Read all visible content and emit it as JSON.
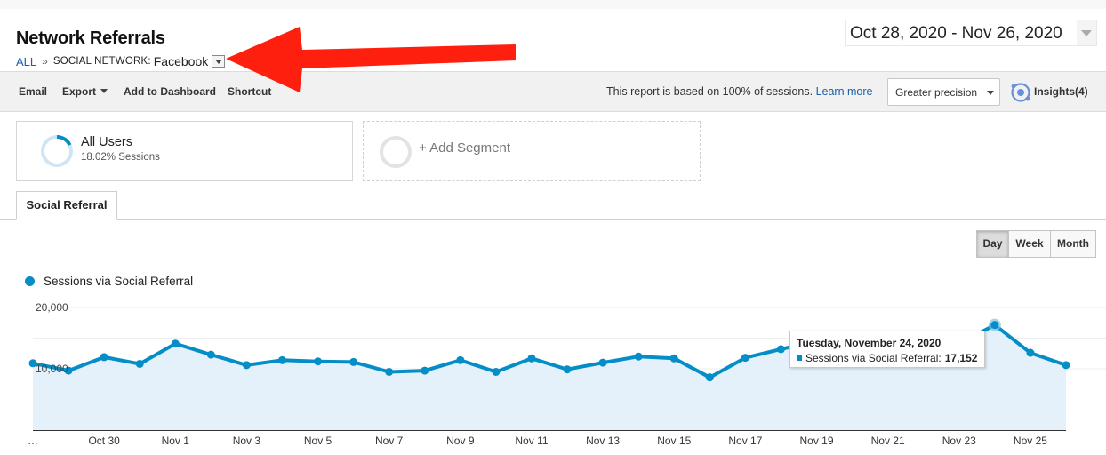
{
  "report": {
    "title": "Network Referrals",
    "breadcrumb": {
      "root": "ALL",
      "separator": "»",
      "dimension": "SOCIAL NETWORK:",
      "value": "Facebook"
    }
  },
  "date_range": "Oct 28, 2020 - Nov 26, 2020",
  "toolbar": {
    "email": "Email",
    "export": "Export",
    "add_to_dashboard": "Add to Dashboard",
    "shortcut": "Shortcut",
    "sampling_note": "This report is based on 100% of sessions.",
    "learn_more": "Learn more",
    "precision": "Greater precision",
    "insights": "Insights(4)"
  },
  "segments": {
    "all_users": {
      "title": "All Users",
      "subtitle": "18.02% Sessions",
      "share": 0.1802
    },
    "add_segment": "+ Add Segment"
  },
  "tab": "Social Referral",
  "period_buttons": [
    {
      "label": "Day",
      "active": true
    },
    {
      "label": "Week",
      "active": false
    },
    {
      "label": "Month",
      "active": false
    }
  ],
  "legend_label": "Sessions via Social Referral",
  "colors": {
    "accent": "#058dc7",
    "area_fill": "#e5f1fa",
    "arrow": "#ff1f0f",
    "link": "#1a5fa8"
  },
  "tooltip": {
    "title": "Tuesday, November 24, 2020",
    "label": "Sessions via Social Referral:",
    "value": "17,152"
  },
  "annotation": {
    "type": "red-arrow",
    "points_to": "breadcrumb-facebook"
  },
  "chart_data": {
    "type": "area",
    "x": [
      "Oct 28",
      "Oct 29",
      "Oct 30",
      "Oct 31",
      "Nov 1",
      "Nov 2",
      "Nov 3",
      "Nov 4",
      "Nov 5",
      "Nov 6",
      "Nov 7",
      "Nov 8",
      "Nov 9",
      "Nov 10",
      "Nov 11",
      "Nov 12",
      "Nov 13",
      "Nov 14",
      "Nov 15",
      "Nov 16",
      "Nov 17",
      "Nov 18",
      "Nov 19",
      "Nov 20",
      "Nov 21",
      "Nov 22",
      "Nov 23",
      "Nov 24",
      "Nov 25",
      "Nov 26"
    ],
    "x_tick_labels": [
      "…",
      "Oct 30",
      "Nov 1",
      "Nov 3",
      "Nov 5",
      "Nov 7",
      "Nov 9",
      "Nov 11",
      "Nov 13",
      "Nov 15",
      "Nov 17",
      "Nov 19",
      "Nov 21",
      "Nov 23",
      "Nov 25"
    ],
    "series": [
      {
        "name": "Sessions via Social Referral",
        "values": [
          10900,
          9700,
          11900,
          10800,
          14100,
          12300,
          10600,
          11400,
          11200,
          11100,
          9500,
          9700,
          11400,
          9500,
          11700,
          9900,
          11000,
          12000,
          11700,
          8600,
          11800,
          13200,
          14500,
          13800,
          14000,
          14200,
          14100,
          17152,
          12600,
          10600
        ]
      }
    ],
    "y_tick_labels": [
      "10,000",
      "20,000"
    ],
    "ylim": [
      0,
      20000
    ],
    "grid": true,
    "highlighted_point": {
      "x": "Nov 24",
      "value": 17152
    }
  }
}
